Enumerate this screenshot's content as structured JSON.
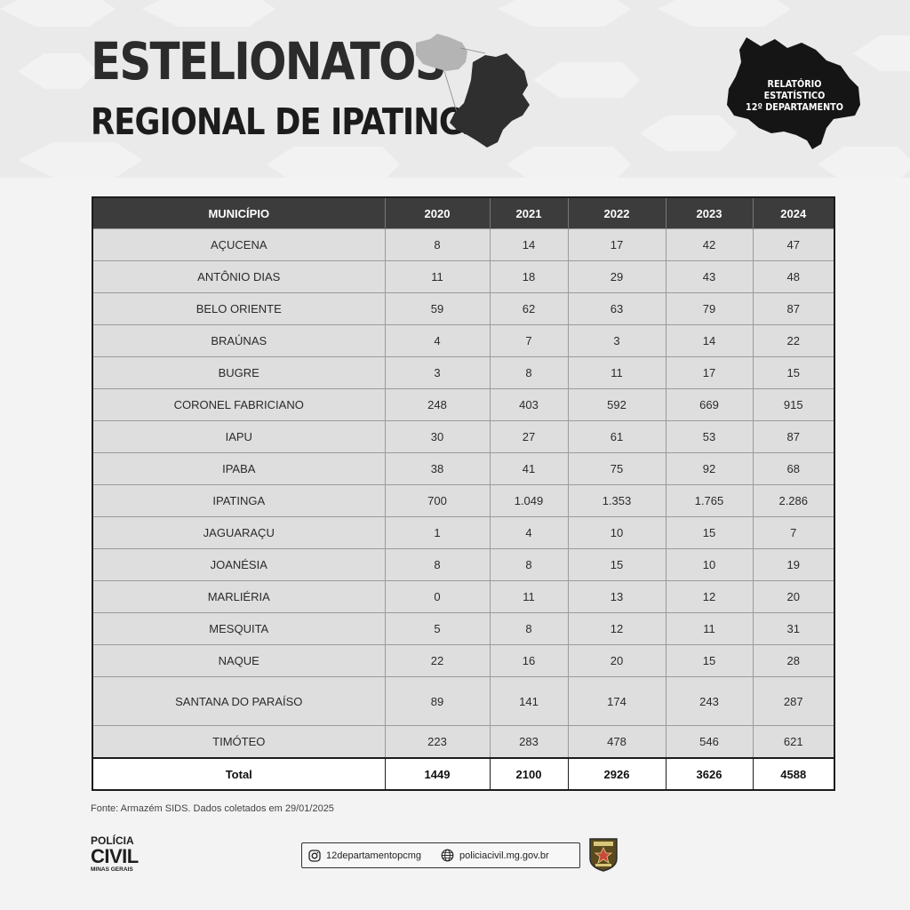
{
  "header": {
    "title": "ESTELIONATOS",
    "subtitle": "REGIONAL DE IPATINGA",
    "report_line1": "RELATÓRIO ESTATÍSTICO",
    "report_line2": "12º DEPARTAMENTO"
  },
  "table": {
    "columns": [
      "MUNICÍPIO",
      "2020",
      "2021",
      "2022",
      "2023",
      "2024"
    ],
    "rows": [
      [
        "AÇUCENA",
        "8",
        "14",
        "17",
        "42",
        "47"
      ],
      [
        "ANTÔNIO DIAS",
        "11",
        "18",
        "29",
        "43",
        "48"
      ],
      [
        "BELO ORIENTE",
        "59",
        "62",
        "63",
        "79",
        "87"
      ],
      [
        "BRAÚNAS",
        "4",
        "7",
        "3",
        "14",
        "22"
      ],
      [
        "BUGRE",
        "3",
        "8",
        "11",
        "17",
        "15"
      ],
      [
        "CORONEL FABRICIANO",
        "248",
        "403",
        "592",
        "669",
        "915"
      ],
      [
        "IAPU",
        "30",
        "27",
        "61",
        "53",
        "87"
      ],
      [
        "IPABA",
        "38",
        "41",
        "75",
        "92",
        "68"
      ],
      [
        "IPATINGA",
        "700",
        "1.049",
        "1.353",
        "1.765",
        "2.286"
      ],
      [
        "JAGUARAÇU",
        "1",
        "4",
        "10",
        "15",
        "7"
      ],
      [
        "JOANÉSIA",
        "8",
        "8",
        "15",
        "10",
        "19"
      ],
      [
        "MARLIÉRIA",
        "0",
        "11",
        "13",
        "12",
        "20"
      ],
      [
        "MESQUITA",
        "5",
        "8",
        "12",
        "11",
        "31"
      ],
      [
        "NAQUE",
        "22",
        "16",
        "20",
        "15",
        "28"
      ],
      [
        "SANTANA DO PARAÍSO",
        "89",
        "141",
        "174",
        "243",
        "287"
      ],
      [
        "TIMÓTEO",
        "223",
        "283",
        "478",
        "546",
        "621"
      ]
    ],
    "total": [
      "Total",
      "1449",
      "2100",
      "2926",
      "3626",
      "4588"
    ]
  },
  "footer": {
    "source": "Fonte: Armazém SIDS. Dados coletados em 29/01/2025",
    "logo_line1": "POLÍCIA",
    "logo_line2": "CIVIL",
    "logo_line3": "MINAS GERAIS",
    "instagram": "12departamentopcmg",
    "website": "policiacivil.mg.gov.br",
    "instagram_icon": "instagram-icon",
    "website_icon": "globe-icon"
  },
  "colors": {
    "header_row": "#3c3c3c",
    "row_bg": "#dedede",
    "title": "#2b2b2b"
  }
}
